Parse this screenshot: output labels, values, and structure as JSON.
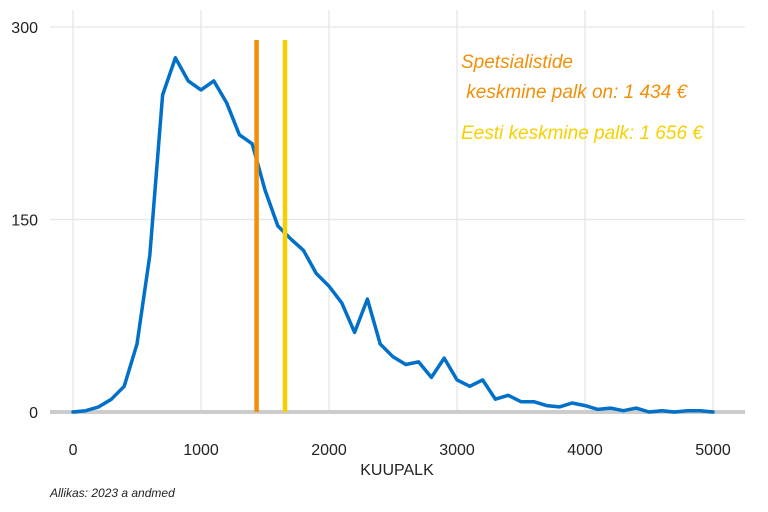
{
  "chart_data": {
    "type": "line",
    "title": "",
    "xlabel": "KUUPALK",
    "ylabel": "",
    "xlim": [
      -180,
      5250
    ],
    "ylim": [
      0,
      300
    ],
    "xticks": [
      0,
      1000,
      2000,
      3000,
      4000,
      5000
    ],
    "yticks": [
      0,
      150,
      300
    ],
    "xtick_labels": [
      "0",
      "1000",
      "2000",
      "3000",
      "4000",
      "5000"
    ],
    "ytick_labels": [
      "0",
      "150",
      "300"
    ],
    "grid": true,
    "legend": "none",
    "series": [
      {
        "color": "#0070C8",
        "x": [
          0,
          100,
          200,
          300,
          400,
          500,
          600,
          700,
          800,
          900,
          1000,
          1100,
          1200,
          1300,
          1400,
          1500,
          1600,
          1700,
          1800,
          1900,
          2000,
          2100,
          2200,
          2300,
          2400,
          2500,
          2600,
          2700,
          2800,
          2900,
          3000,
          3100,
          3200,
          3300,
          3400,
          3500,
          3600,
          3700,
          3800,
          3900,
          4000,
          4100,
          4200,
          4300,
          4400,
          4500,
          4600,
          4700,
          4800,
          4900,
          5000
        ],
        "y": [
          0,
          1,
          4,
          10,
          20,
          53,
          122,
          247,
          276,
          258,
          251,
          258,
          241,
          216,
          209,
          173,
          145,
          135,
          126,
          108,
          98,
          85,
          62,
          88,
          53,
          43,
          37,
          39,
          27,
          42,
          25,
          20,
          25,
          10,
          13,
          8,
          8,
          5,
          4,
          7,
          5,
          2,
          3,
          1,
          3,
          0,
          1,
          0,
          1,
          1,
          0
        ]
      }
    ],
    "vlines": [
      {
        "x": 1434,
        "color": "#F0900A"
      },
      {
        "x": 1656,
        "color": "#F8D000"
      }
    ],
    "annotations": [
      {
        "lines": [
          "Spetsialistide",
          " keskmine palk on: 1 434 €"
        ],
        "color": "#F0900A"
      },
      {
        "lines": [
          "Eesti keskmine palk: 1 656 €"
        ],
        "color": "#F8D000"
      }
    ],
    "caption": "Allikas: 2023 a andmed"
  }
}
